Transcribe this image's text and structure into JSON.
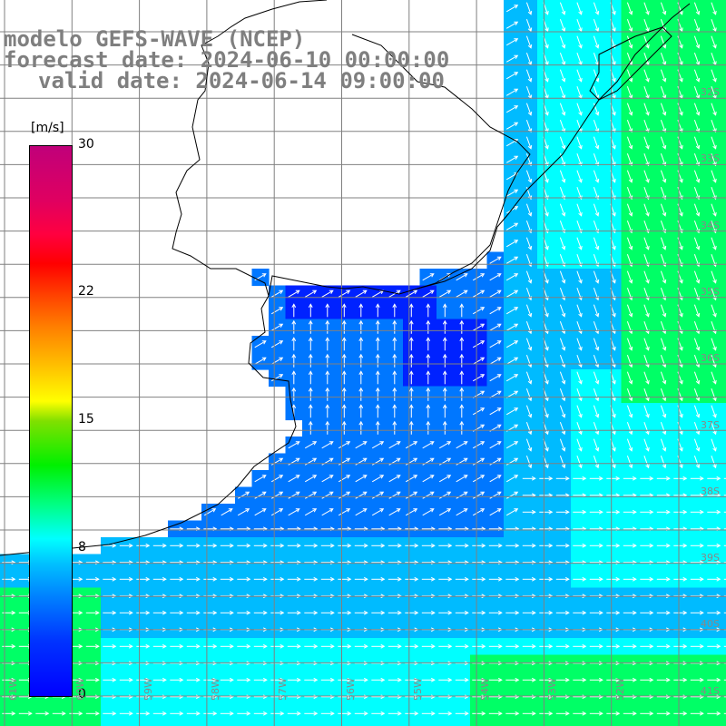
{
  "header": {
    "line1": "modelo GEFS-WAVE (NCEP)",
    "line2": "forecast date: 2024-06-10 00:00:00",
    "line3": "valid date: 2024-06-14 09:00:00"
  },
  "colorbar": {
    "unit": "[m/s]",
    "ticks": [
      {
        "label": "30",
        "value": 30
      },
      {
        "label": "22",
        "value": 22
      },
      {
        "label": "15",
        "value": 15
      },
      {
        "label": "8",
        "value": 8
      },
      {
        "label": "0",
        "value": 0
      }
    ],
    "min": 0,
    "max": 30,
    "colors": [
      "#0000ff",
      "#00c0ff",
      "#00ffff",
      "#00f000",
      "#ffff00",
      "#ff8000",
      "#ff0000",
      "#c0007a"
    ]
  },
  "map": {
    "lat_labels": [
      "32S",
      "33S",
      "34S",
      "35S",
      "36S",
      "37S",
      "38S",
      "39S",
      "40S",
      "41S"
    ],
    "lon_labels": [
      "61W",
      "60W",
      "59W",
      "58W",
      "57W",
      "56W",
      "55W",
      "54W",
      "53W",
      "52W"
    ],
    "ocean_colors": {
      "calm": "#0022ff",
      "low": "#0077ff",
      "mid": "#00bbff",
      "cyan": "#00ffff",
      "green": "#00ff66"
    },
    "land_color": "#ffffff",
    "grid_color": "#808080",
    "arrow_color": "#ffffff"
  }
}
